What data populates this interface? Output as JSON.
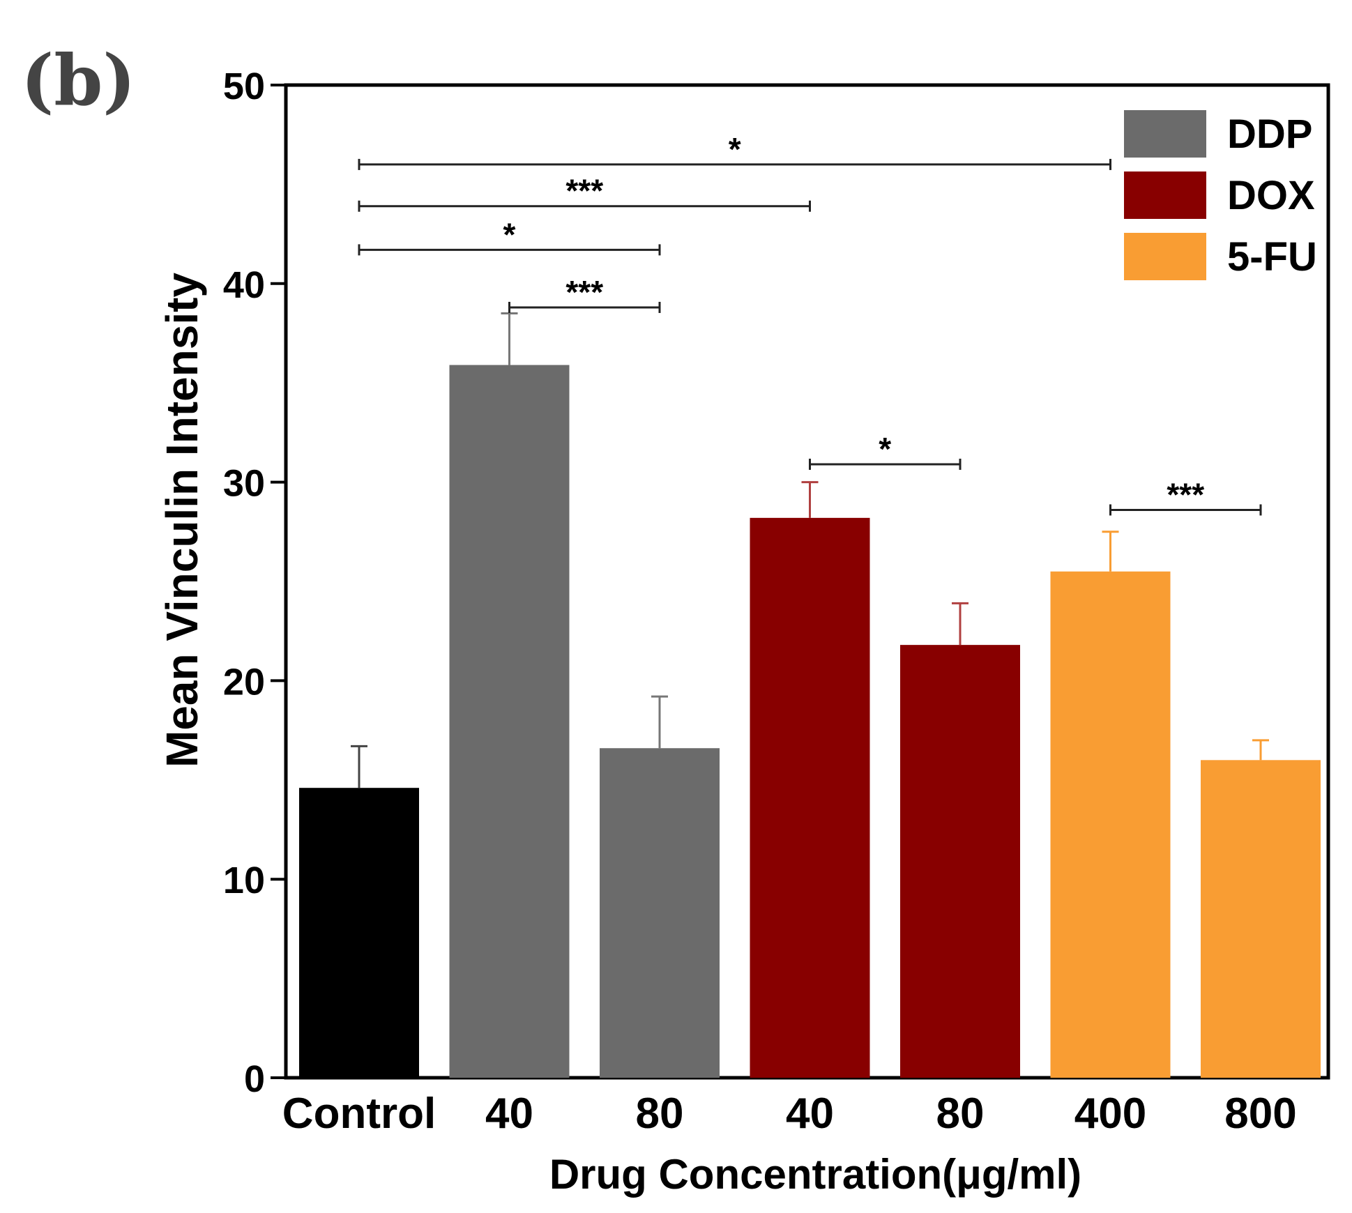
{
  "panel_label": "(b)",
  "chart_data": {
    "type": "bar",
    "title": "",
    "xlabel": "Drug Concentration(μg/ml)",
    "ylabel": "Mean Vinculin Intensity",
    "ylim": [
      0,
      50
    ],
    "yticks": [
      "0",
      "10",
      "20",
      "30",
      "40",
      "50"
    ],
    "categories": [
      "Control",
      "40",
      "80",
      "40",
      "80",
      "400",
      "800"
    ],
    "groups": [
      "Control",
      "DDP",
      "DDP",
      "DOX",
      "DOX",
      "5-FU",
      "5-FU"
    ],
    "values": [
      14.6,
      35.9,
      16.6,
      28.2,
      21.8,
      25.5,
      16.0
    ],
    "errors": [
      2.1,
      2.6,
      2.6,
      1.8,
      2.1,
      2.0,
      1.0
    ],
    "colors": {
      "Control": "#000000",
      "DDP": "#6b6b6b",
      "DOX": "#880000",
      "5-FU": "#f99d33"
    },
    "error_colors": {
      "Control": "#444444",
      "DDP": "#777777",
      "DOX": "#b04040",
      "5-FU": "#f99d33"
    },
    "legend": [
      {
        "label": "DDP",
        "color": "#6b6b6b"
      },
      {
        "label": "DOX",
        "color": "#880000"
      },
      {
        "label": "5-FU",
        "color": "#f99d33"
      }
    ],
    "legend_position": "top-right",
    "significance": [
      {
        "from": 0,
        "to": 5,
        "y": 46.0,
        "label": "*"
      },
      {
        "from": 0,
        "to": 3,
        "y": 43.9,
        "label": "***"
      },
      {
        "from": 0,
        "to": 2,
        "y": 41.7,
        "label": "*"
      },
      {
        "from": 1,
        "to": 2,
        "y": 38.8,
        "label": "***"
      },
      {
        "from": 3,
        "to": 4,
        "y": 30.9,
        "label": "*"
      },
      {
        "from": 5,
        "to": 6,
        "y": 28.6,
        "label": "***"
      }
    ]
  }
}
